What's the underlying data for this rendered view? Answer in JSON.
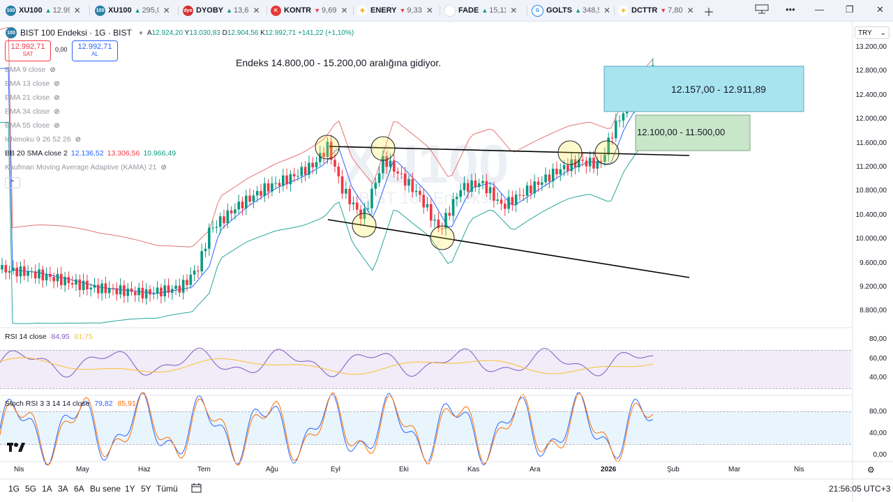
{
  "tabs": [
    {
      "symbol": "XU100",
      "value": "12.99",
      "dir": "up",
      "icon": "100",
      "color": "#2a7ea5"
    },
    {
      "symbol": "XU100",
      "value": "295,0",
      "dir": "up",
      "icon": "100",
      "color": "#2a7ea5"
    },
    {
      "symbol": "DYOBY",
      "value": "13,6",
      "dir": "up",
      "icon": "dyo",
      "color": "#d32f2f"
    },
    {
      "symbol": "KONTR",
      "value": "9,69",
      "dir": "down",
      "icon": "K",
      "color": "#e53935"
    },
    {
      "symbol": "ENERY",
      "value": "9,33",
      "dir": "down",
      "icon": "✦",
      "color": "#f9a825"
    },
    {
      "symbol": "FADE",
      "value": "15,11",
      "dir": "up",
      "icon": "",
      "color": "#ffffff"
    },
    {
      "symbol": "GOLTS",
      "value": "348,5",
      "dir": "up",
      "icon": "G",
      "color": "#1e88e5"
    },
    {
      "symbol": "DCTTR",
      "value": "7,80",
      "dir": "down",
      "icon": "✦",
      "color": "#fbc02d"
    }
  ],
  "legend": {
    "title": "BIST 100 Endeksi · 1G · BIST",
    "ohlc": {
      "o_label": "A",
      "o": "12.924,20",
      "h_label": "Y",
      "h": "13.030,83",
      "l_label": "D",
      "l": "12.904,56",
      "c_label": "K",
      "c": "12.992,71",
      "chg": "+141,22 (+1,10%)"
    },
    "sell": {
      "price": "12.992,71",
      "label": "SAT"
    },
    "spread": "0,00",
    "buy": {
      "price": "12.992,71",
      "label": "AL"
    },
    "indicators": [
      {
        "label": "EMA 9 close"
      },
      {
        "label": "EMA 13 close"
      },
      {
        "label": "EMA 21 close"
      },
      {
        "label": "EMA 34 close"
      },
      {
        "label": "EMA 55 close"
      },
      {
        "label": "Ichimoku 9 26 52 26"
      },
      {
        "label": "BB 20 SMA close 2",
        "v1": "12.136,52",
        "v2": "13.306,56",
        "v3": "10.966,49"
      },
      {
        "label": "Kaufman Moving Average Adaptive (KAMA) 21"
      }
    ]
  },
  "watermark": {
    "symbol": "XU100",
    "name": "BIST 100 Endeksi"
  },
  "annotation": "Endeks 14.800,00 - 15.200,00 aralığına gidiyor.",
  "zones": {
    "upper": "12.157,00 - 12.911,89",
    "lower": "12.100,00 - 11.500,00",
    "upper_color": "#a8e4f0",
    "lower_color": "#c8e6c9"
  },
  "currency": "TRY",
  "price_axis": [
    "13.200,00",
    "12.800,00",
    "12.400,00",
    "12.000,00",
    "11.600,00",
    "11.200,00",
    "10.800,00",
    "10.400,00",
    "10.000,00",
    "9.600,00",
    "9.200,00",
    "8.800,00"
  ],
  "rsi": {
    "label": "RSI 14 close",
    "v1": "84,95",
    "v2": "81,75",
    "axis": [
      "80,00",
      "60,00",
      "40,00"
    ]
  },
  "stoch": {
    "label": "Stoch RSI 3 3 14 14 close",
    "v1": "79,82",
    "v2": "85,91",
    "axis": [
      "80,00",
      "40,00",
      "0,00"
    ]
  },
  "time_axis": [
    "Nis",
    "May",
    "Haz",
    "Tem",
    "Ağu",
    "Eyl",
    "Eki",
    "Kas",
    "Ara",
    "2026",
    "Şub",
    "Mar",
    "Nis"
  ],
  "timeframes": [
    "1G",
    "5G",
    "1A",
    "3A",
    "6A",
    "Bu sene",
    "1Y",
    "5Y",
    "Tümü"
  ],
  "clock": "21:56:05 UTC+3",
  "colors": {
    "up": "#089981",
    "down": "#f23645",
    "bb_upper": "#e57373",
    "bb_basis": "#2962ff",
    "bb_lower": "#26a69a"
  }
}
